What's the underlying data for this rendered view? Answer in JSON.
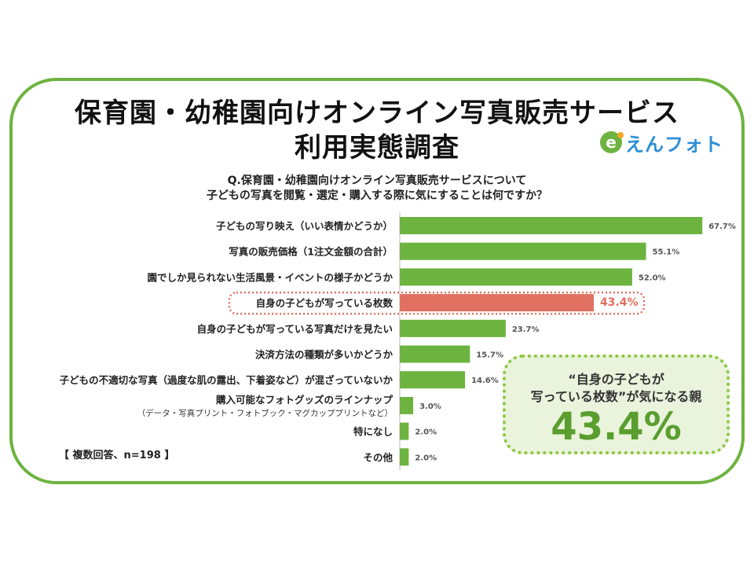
{
  "title": {
    "line1": "保育園・幼稚園向けオンライン写真販売サービス",
    "line2": "利用実態調査"
  },
  "logo": {
    "text": "えんフォト",
    "mark": "e",
    "icon": "enphoto-logo-icon"
  },
  "question": {
    "line1": "Q.保育園・幼稚園向けオンライン写真販売サービスについて",
    "line2": "子どもの写真を閲覧・選定・購入する際に気にすることは何ですか？"
  },
  "note": "【 複数回答、n=198 】",
  "callout": {
    "line1": "“自身の子どもが",
    "line2": "写っている枚数”が気になる親",
    "value": "43.4%"
  },
  "colors": {
    "bar": "#6db33f",
    "highlight": "#e07060",
    "frame": "#6db33f",
    "callout_bg": "#eaf3dc"
  },
  "chart_data": {
    "type": "bar",
    "orientation": "horizontal",
    "categories": [
      [
        "子どもの写り映え（いい表情かどうか）"
      ],
      [
        "写真の販売価格（1注文金額の合計）"
      ],
      [
        "園でしか見られない生活風景・イベントの様子かどうか"
      ],
      [
        "自身の子どもが写っている枚数"
      ],
      [
        "自身の子どもが写っている写真だけを見たい"
      ],
      [
        "決済方法の種類が多いかどうか"
      ],
      [
        "子どもの不適切な写真（過度な肌の露出、下着姿など）が混ざっていないか"
      ],
      [
        "購入可能なフォトグッズのラインナップ",
        "（データ・写真プリント・フォトブック・マグカッププリントなど）"
      ],
      [
        "特になし"
      ],
      [
        "その他"
      ]
    ],
    "values": [
      67.7,
      55.1,
      52.0,
      43.4,
      23.7,
      15.7,
      14.6,
      3.0,
      2.0,
      2.0
    ],
    "value_labels": [
      "67.7%",
      "55.1%",
      "52.0%",
      "43.4%",
      "23.7%",
      "15.7%",
      "14.6%",
      "3.0%",
      "2.0%",
      "2.0%"
    ],
    "highlight_index": 3,
    "unit": "%",
    "sample_size": 198
  }
}
